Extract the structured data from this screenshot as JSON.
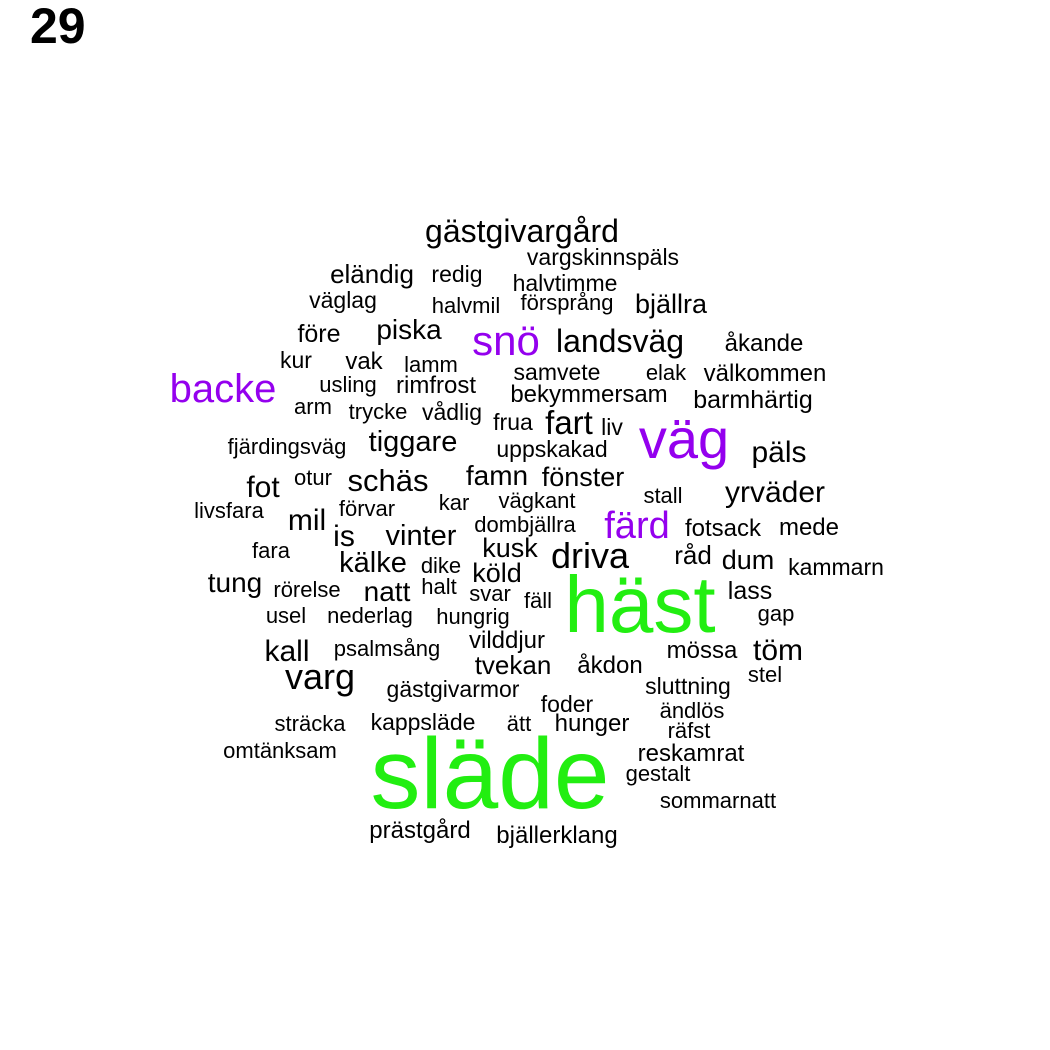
{
  "page_number": "29",
  "colors": {
    "black": "#000000",
    "purple": "#9400ee",
    "green": "#22ee11"
  },
  "words": [
    {
      "text": "släde",
      "color": "green"
    },
    {
      "text": "häst",
      "color": "green"
    },
    {
      "text": "väg",
      "color": "purple"
    },
    {
      "text": "backe",
      "color": "purple"
    },
    {
      "text": "snö",
      "color": "purple"
    },
    {
      "text": "färd",
      "color": "purple"
    },
    {
      "text": "gästgivargård",
      "color": "black"
    },
    {
      "text": "vargskinnspäls",
      "color": "black"
    },
    {
      "text": "eländig",
      "color": "black"
    },
    {
      "text": "redig",
      "color": "black"
    },
    {
      "text": "halvtimme",
      "color": "black"
    },
    {
      "text": "väglag",
      "color": "black"
    },
    {
      "text": "halvmil",
      "color": "black"
    },
    {
      "text": "försprång",
      "color": "black"
    },
    {
      "text": "bjällra",
      "color": "black"
    },
    {
      "text": "före",
      "color": "black"
    },
    {
      "text": "piska",
      "color": "black"
    },
    {
      "text": "landsväg",
      "color": "black"
    },
    {
      "text": "åkande",
      "color": "black"
    },
    {
      "text": "kur",
      "color": "black"
    },
    {
      "text": "vak",
      "color": "black"
    },
    {
      "text": "lamm",
      "color": "black"
    },
    {
      "text": "samvete",
      "color": "black"
    },
    {
      "text": "elak",
      "color": "black"
    },
    {
      "text": "välkommen",
      "color": "black"
    },
    {
      "text": "usling",
      "color": "black"
    },
    {
      "text": "rimfrost",
      "color": "black"
    },
    {
      "text": "bekymmersam",
      "color": "black"
    },
    {
      "text": "arm",
      "color": "black"
    },
    {
      "text": "trycke",
      "color": "black"
    },
    {
      "text": "vådlig",
      "color": "black"
    },
    {
      "text": "frua",
      "color": "black"
    },
    {
      "text": "fart",
      "color": "black"
    },
    {
      "text": "liv",
      "color": "black"
    },
    {
      "text": "barmhärtig",
      "color": "black"
    },
    {
      "text": "fjärdingsväg",
      "color": "black"
    },
    {
      "text": "tiggare",
      "color": "black"
    },
    {
      "text": "uppskakad",
      "color": "black"
    },
    {
      "text": "päls",
      "color": "black"
    },
    {
      "text": "fot",
      "color": "black"
    },
    {
      "text": "otur",
      "color": "black"
    },
    {
      "text": "schäs",
      "color": "black"
    },
    {
      "text": "famn",
      "color": "black"
    },
    {
      "text": "fönster",
      "color": "black"
    },
    {
      "text": "yrväder",
      "color": "black"
    },
    {
      "text": "livsfara",
      "color": "black"
    },
    {
      "text": "förvar",
      "color": "black"
    },
    {
      "text": "kar",
      "color": "black"
    },
    {
      "text": "vägkant",
      "color": "black"
    },
    {
      "text": "stall",
      "color": "black"
    },
    {
      "text": "mil",
      "color": "black"
    },
    {
      "text": "is",
      "color": "black"
    },
    {
      "text": "vinter",
      "color": "black"
    },
    {
      "text": "dombjällra",
      "color": "black"
    },
    {
      "text": "fotsack",
      "color": "black"
    },
    {
      "text": "mede",
      "color": "black"
    },
    {
      "text": "fara",
      "color": "black"
    },
    {
      "text": "kälke",
      "color": "black"
    },
    {
      "text": "dike",
      "color": "black"
    },
    {
      "text": "kusk",
      "color": "black"
    },
    {
      "text": "driva",
      "color": "black"
    },
    {
      "text": "råd",
      "color": "black"
    },
    {
      "text": "dum",
      "color": "black"
    },
    {
      "text": "kammarn",
      "color": "black"
    },
    {
      "text": "tung",
      "color": "black"
    },
    {
      "text": "rörelse",
      "color": "black"
    },
    {
      "text": "natt",
      "color": "black"
    },
    {
      "text": "halt",
      "color": "black"
    },
    {
      "text": "köld",
      "color": "black"
    },
    {
      "text": "svar",
      "color": "black"
    },
    {
      "text": "fäll",
      "color": "black"
    },
    {
      "text": "lass",
      "color": "black"
    },
    {
      "text": "usel",
      "color": "black"
    },
    {
      "text": "nederlag",
      "color": "black"
    },
    {
      "text": "hungrig",
      "color": "black"
    },
    {
      "text": "gap",
      "color": "black"
    },
    {
      "text": "kall",
      "color": "black"
    },
    {
      "text": "psalmsång",
      "color": "black"
    },
    {
      "text": "vilddjur",
      "color": "black"
    },
    {
      "text": "mössa",
      "color": "black"
    },
    {
      "text": "töm",
      "color": "black"
    },
    {
      "text": "varg",
      "color": "black"
    },
    {
      "text": "tvekan",
      "color": "black"
    },
    {
      "text": "åkdon",
      "color": "black"
    },
    {
      "text": "stel",
      "color": "black"
    },
    {
      "text": "gästgivarmor",
      "color": "black"
    },
    {
      "text": "sluttning",
      "color": "black"
    },
    {
      "text": "foder",
      "color": "black"
    },
    {
      "text": "ändlös",
      "color": "black"
    },
    {
      "text": "sträcka",
      "color": "black"
    },
    {
      "text": "kappsläde",
      "color": "black"
    },
    {
      "text": "ätt",
      "color": "black"
    },
    {
      "text": "hunger",
      "color": "black"
    },
    {
      "text": "räfst",
      "color": "black"
    },
    {
      "text": "omtänksam",
      "color": "black"
    },
    {
      "text": "reskamrat",
      "color": "black"
    },
    {
      "text": "gestalt",
      "color": "black"
    },
    {
      "text": "sommarnatt",
      "color": "black"
    },
    {
      "text": "prästgård",
      "color": "black"
    },
    {
      "text": "bjällerklang",
      "color": "black"
    }
  ]
}
